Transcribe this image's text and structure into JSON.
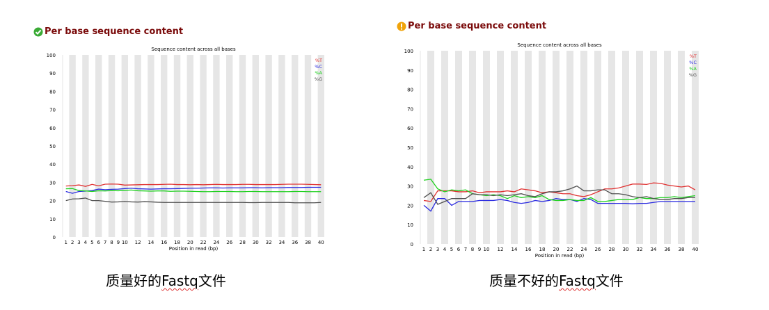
{
  "panels": [
    {
      "status": "pass",
      "heading": "Per base sequence content",
      "caption_prefix": "质量好的",
      "caption_underlined": "Fastq",
      "caption_suffix": "文件"
    },
    {
      "status": "warn",
      "heading": "Per base sequence content",
      "caption_prefix": "质量不好的",
      "caption_underlined": "Fastq",
      "caption_suffix": "文件"
    }
  ],
  "colors": {
    "pass_icon": "#3aaa35",
    "warn_icon": "#f0a30a",
    "heading": "#7a0a0a",
    "stripe": "#e6e6e6",
    "T": "#e03030",
    "C": "#2a2ae0",
    "A": "#20d020",
    "G": "#505050"
  },
  "chart_data": [
    {
      "type": "line",
      "title": "Sequence content across all bases",
      "xlabel": "Position in read (bp)",
      "ylabel": "",
      "ylim": [
        0,
        100
      ],
      "yticks": [
        0,
        10,
        20,
        30,
        40,
        50,
        60,
        70,
        80,
        90,
        100
      ],
      "xtick_labels": [
        "1",
        "2",
        "3",
        "4",
        "5",
        "6",
        "7",
        "8",
        "9",
        "10",
        "12",
        "14",
        "16",
        "18",
        "20",
        "22",
        "24",
        "26",
        "28",
        "30",
        "32",
        "34",
        "36",
        "38",
        "40"
      ],
      "x": [
        1,
        2,
        3,
        4,
        5,
        6,
        7,
        8,
        9,
        10,
        11,
        12,
        13,
        14,
        15,
        16,
        17,
        18,
        19,
        20,
        21,
        22,
        23,
        24,
        25,
        26,
        27,
        28,
        29,
        30,
        31,
        32,
        33,
        34,
        35,
        36,
        37,
        38,
        39,
        40
      ],
      "legend_position": "top-right",
      "grid": false,
      "series": [
        {
          "name": "%T",
          "color_key": "T",
          "values": [
            28.0,
            28.2,
            28.6,
            27.8,
            28.9,
            28.1,
            29.0,
            29.1,
            29.0,
            28.5,
            28.6,
            28.7,
            28.8,
            28.8,
            28.8,
            28.9,
            29.0,
            28.8,
            28.8,
            28.7,
            28.8,
            28.7,
            28.8,
            28.9,
            28.8,
            28.8,
            28.8,
            28.9,
            28.9,
            28.8,
            28.8,
            28.8,
            28.8,
            28.9,
            29.0,
            29.0,
            29.0,
            28.9,
            28.8,
            28.7
          ]
        },
        {
          "name": "%C",
          "color_key": "C",
          "values": [
            25.0,
            24.0,
            25.0,
            25.2,
            25.5,
            26.3,
            26.0,
            26.2,
            26.3,
            26.6,
            26.8,
            26.5,
            26.4,
            26.3,
            26.4,
            26.5,
            26.5,
            26.6,
            26.7,
            26.8,
            26.8,
            26.9,
            27.0,
            27.0,
            26.9,
            27.0,
            27.0,
            27.0,
            27.1,
            27.1,
            27.0,
            27.1,
            27.1,
            27.1,
            27.2,
            27.2,
            27.2,
            27.3,
            27.3,
            27.3
          ]
        },
        {
          "name": "%A",
          "color_key": "A",
          "values": [
            26.5,
            26.6,
            25.5,
            25.3,
            25.0,
            25.4,
            25.3,
            25.5,
            25.4,
            25.6,
            25.8,
            25.4,
            25.3,
            25.2,
            25.3,
            25.3,
            25.1,
            25.2,
            25.2,
            25.1,
            25.0,
            24.9,
            24.9,
            25.0,
            25.0,
            25.0,
            24.9,
            24.9,
            25.0,
            25.0,
            24.9,
            24.9,
            24.9,
            24.9,
            24.9,
            25.0,
            25.0,
            24.9,
            24.9,
            24.9
          ]
        },
        {
          "name": "%G",
          "color_key": "G",
          "values": [
            20.0,
            20.9,
            21.0,
            21.4,
            20.0,
            20.0,
            19.6,
            19.2,
            19.3,
            19.5,
            19.3,
            19.2,
            19.4,
            19.3,
            19.1,
            19.0,
            19.0,
            19.0,
            19.0,
            19.0,
            19.0,
            19.0,
            19.0,
            19.0,
            19.0,
            19.0,
            19.0,
            19.0,
            18.9,
            18.9,
            19.0,
            19.0,
            19.0,
            19.0,
            19.0,
            18.8,
            18.8,
            18.8,
            18.8,
            19.0
          ]
        }
      ]
    },
    {
      "type": "line",
      "title": "Sequence content across all bases",
      "xlabel": "Position in read (bp)",
      "ylabel": "",
      "ylim": [
        0,
        100
      ],
      "yticks": [
        0,
        10,
        20,
        30,
        40,
        50,
        60,
        70,
        80,
        90,
        100
      ],
      "xtick_labels": [
        "1",
        "2",
        "3",
        "4",
        "5",
        "6",
        "7",
        "8",
        "9",
        "10",
        "12",
        "14",
        "16",
        "18",
        "20",
        "22",
        "24",
        "26",
        "28",
        "30",
        "32",
        "34",
        "36",
        "38",
        "40"
      ],
      "x": [
        1,
        2,
        3,
        4,
        5,
        6,
        7,
        8,
        9,
        10,
        11,
        12,
        13,
        14,
        15,
        16,
        17,
        18,
        19,
        20,
        21,
        22,
        23,
        24,
        25,
        26,
        27,
        28,
        29,
        30,
        31,
        32,
        33,
        34,
        35,
        36,
        37,
        38,
        39,
        40
      ],
      "legend_position": "top-right",
      "grid": false,
      "series": [
        {
          "name": "%T",
          "color_key": "T",
          "values": [
            22.5,
            22.0,
            27.5,
            27.5,
            27.5,
            27.0,
            27.0,
            27.5,
            26.5,
            27.0,
            27.0,
            27.0,
            27.5,
            27.0,
            28.5,
            28.0,
            27.5,
            26.5,
            27.0,
            26.5,
            26.0,
            26.0,
            25.0,
            24.5,
            25.5,
            27.0,
            28.5,
            28.5,
            29.0,
            30.0,
            31.0,
            31.0,
            30.8,
            31.6,
            31.4,
            30.5,
            30.0,
            29.5,
            30.0,
            28.0
          ]
        },
        {
          "name": "%C",
          "color_key": "C",
          "values": [
            20.0,
            17.0,
            23.5,
            23.5,
            20.0,
            22.0,
            22.0,
            22.0,
            22.5,
            22.5,
            22.5,
            23.0,
            22.5,
            21.5,
            21.0,
            21.5,
            22.5,
            22.0,
            22.5,
            23.5,
            23.0,
            23.0,
            22.0,
            23.5,
            23.0,
            21.0,
            21.0,
            21.0,
            21.0,
            21.0,
            20.8,
            21.0,
            21.0,
            21.5,
            22.0,
            22.0,
            22.0,
            22.0,
            22.0,
            22.0
          ]
        },
        {
          "name": "%A",
          "color_key": "A",
          "values": [
            33.0,
            33.5,
            28.5,
            27.0,
            28.0,
            27.5,
            28.0,
            26.0,
            25.5,
            25.0,
            25.5,
            25.0,
            23.5,
            25.0,
            24.0,
            24.5,
            24.0,
            25.0,
            23.0,
            22.5,
            22.5,
            23.0,
            22.5,
            22.5,
            24.0,
            22.0,
            22.0,
            22.5,
            23.0,
            23.0,
            23.0,
            24.0,
            23.5,
            23.5,
            24.0,
            24.0,
            24.5,
            24.0,
            24.5,
            25.0
          ]
        },
        {
          "name": "%G",
          "color_key": "G",
          "values": [
            24.0,
            26.5,
            20.5,
            22.0,
            23.5,
            23.5,
            23.5,
            26.0,
            25.5,
            25.5,
            25.0,
            25.5,
            25.0,
            25.5,
            26.0,
            25.0,
            24.5,
            26.0,
            27.0,
            27.0,
            27.5,
            28.5,
            30.0,
            27.5,
            27.5,
            28.0,
            28.0,
            26.0,
            26.0,
            25.5,
            24.5,
            24.0,
            24.5,
            23.5,
            23.0,
            23.0,
            23.5,
            23.5,
            24.0,
            24.0
          ]
        }
      ]
    }
  ]
}
